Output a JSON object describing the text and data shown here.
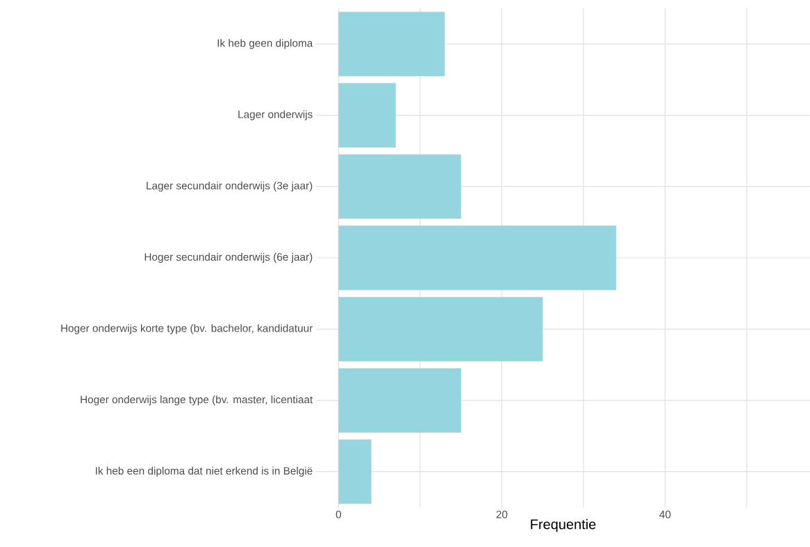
{
  "chart_data": {
    "type": "bar",
    "orientation": "horizontal",
    "xlabel": "Frequentie",
    "categories": [
      "Ik heb geen diploma",
      "Lager onderwijs",
      "Lager secundair onderwijs (3e jaar)",
      "Hoger secundair onderwijs (6e jaar)",
      "Hoger onderwijs korte type (bv. bachelor, kandidatuur",
      "Hoger onderwijs lange type (bv. master, licentiaat",
      "Ik heb een diploma dat niet erkend is in België"
    ],
    "values": [
      13,
      7,
      15,
      34,
      25,
      15,
      4
    ],
    "color": "#94d5df",
    "xlim": [
      -2.75,
      57.75
    ],
    "xticks": [
      0,
      20,
      40,
      {
        "value": 10,
        "label": null
      },
      {
        "value": 30,
        "label": null
      },
      {
        "value": 50,
        "label": null
      }
    ],
    "grid": true
  }
}
